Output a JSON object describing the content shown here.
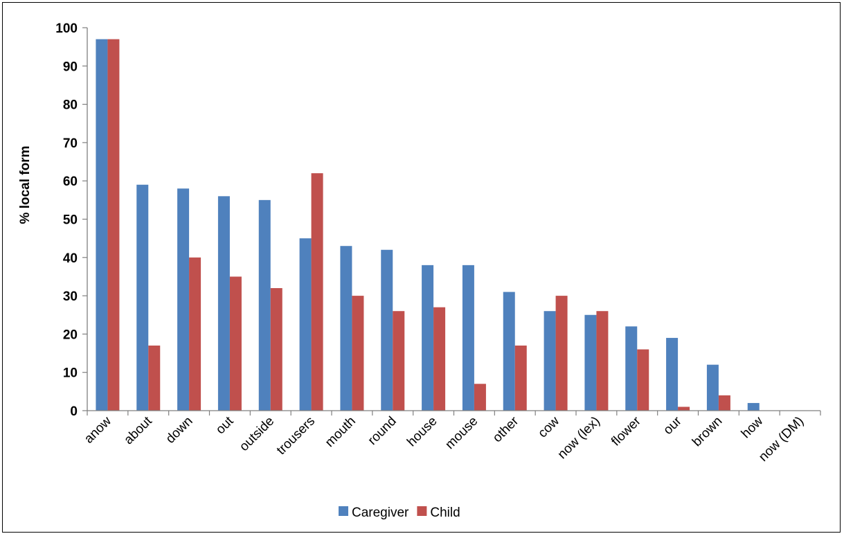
{
  "chart_data": {
    "type": "bar",
    "title": "",
    "xlabel": "",
    "ylabel": "% local form",
    "ylim": [
      0,
      100
    ],
    "yticks": [
      0,
      10,
      20,
      30,
      40,
      50,
      60,
      70,
      80,
      90,
      100
    ],
    "grid": false,
    "legend_position": "bottom",
    "categories": [
      "anow",
      "about",
      "down",
      "out",
      "outside",
      "trousers",
      "mouth",
      "round",
      "house",
      "mouse",
      "other",
      "cow",
      "now (lex)",
      "flower",
      "our",
      "brown",
      "how",
      "now (DM)"
    ],
    "series": [
      {
        "name": "Caregiver",
        "color": "#4F81BD",
        "values": [
          97,
          59,
          58,
          56,
          55,
          45,
          43,
          42,
          38,
          38,
          31,
          26,
          25,
          22,
          19,
          12,
          2,
          0
        ]
      },
      {
        "name": "Child",
        "color": "#C0504D",
        "values": [
          97,
          17,
          40,
          35,
          32,
          62,
          30,
          26,
          27,
          7,
          17,
          30,
          26,
          16,
          1,
          4,
          0,
          0
        ]
      }
    ]
  }
}
